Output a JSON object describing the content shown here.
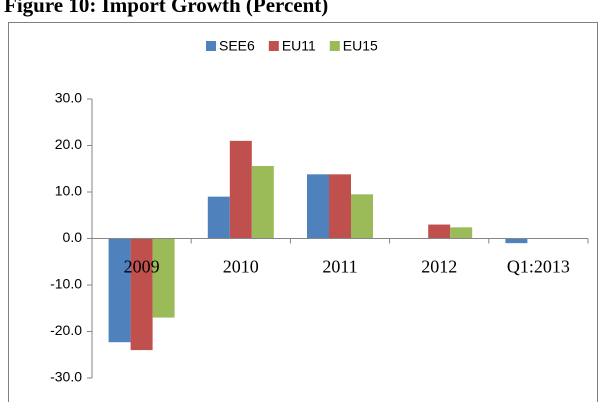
{
  "chart_data": {
    "type": "bar",
    "title": "Figure 10: Import Growth (Percent)",
    "categories": [
      "2009",
      "2010",
      "2011",
      "2012",
      "Q1:2013"
    ],
    "series": [
      {
        "name": "SEE6",
        "color": "#4f81bd",
        "values": [
          -22.3,
          9.0,
          13.8,
          0,
          -1.0
        ]
      },
      {
        "name": "EU11",
        "color": "#c0504d",
        "values": [
          -24.0,
          21.0,
          13.8,
          3.0,
          0
        ]
      },
      {
        "name": "EU15",
        "color": "#9bbb59",
        "values": [
          -17.0,
          15.6,
          9.5,
          2.4,
          0
        ]
      }
    ],
    "ylim": [
      -30,
      30
    ],
    "yticks": [
      {
        "value": -30,
        "label": "-30.0"
      },
      {
        "value": -20,
        "label": "-20.0"
      },
      {
        "value": -10,
        "label": "-10.0"
      },
      {
        "value": 0,
        "label": "0.0"
      },
      {
        "value": 10,
        "label": "10.0"
      },
      {
        "value": 20,
        "label": "20.0"
      },
      {
        "value": 30,
        "label": "30.0"
      }
    ],
    "grid": false,
    "legend": "top"
  }
}
